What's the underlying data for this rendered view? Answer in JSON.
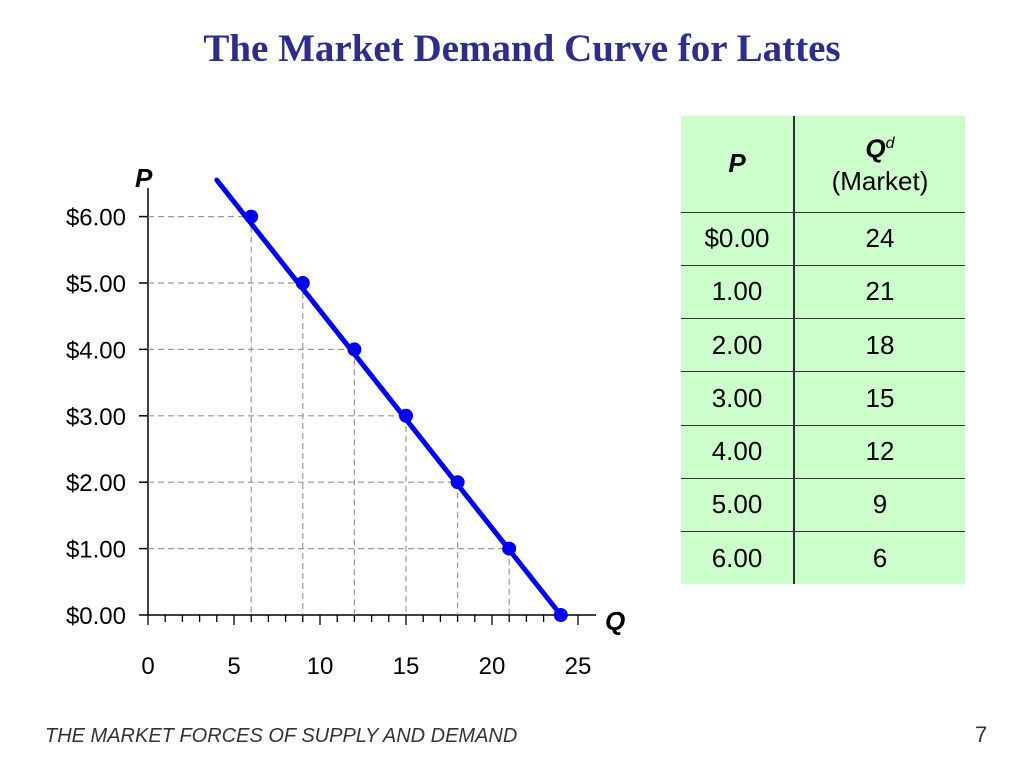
{
  "title": "The Market Demand Curve for Lattes",
  "footer": "THE MARKET FORCES OF SUPPLY AND DEMAND",
  "page_number": "7",
  "colors": {
    "title": "#2d2d8a",
    "curve": "#0000ee",
    "table_bg": "#ccffcc"
  },
  "chart_data": {
    "type": "line",
    "x": [
      6,
      9,
      12,
      15,
      18,
      21,
      24
    ],
    "y": [
      6,
      5,
      4,
      3,
      2,
      1,
      0
    ],
    "xlabel": "Q",
    "ylabel": "P",
    "xlim": [
      0,
      25
    ],
    "ylim": [
      0,
      6
    ],
    "x_ticks": [
      0,
      5,
      10,
      15,
      20,
      25
    ],
    "x_tick_labels": [
      "0",
      "5",
      "10",
      "15",
      "20",
      "25"
    ],
    "y_ticks": [
      0,
      1,
      2,
      3,
      4,
      5,
      6
    ],
    "y_tick_labels": [
      "$0.00",
      "$1.00",
      "$2.00",
      "$3.00",
      "$4.00",
      "$5.00",
      "$6.00"
    ],
    "line_extends_to": [
      4,
      6.55
    ],
    "dashed_guides": true,
    "markers": true
  },
  "table": {
    "header_p": "P",
    "header_q": "Q",
    "header_q_sup": "d",
    "header_q_sub": "(Market)",
    "rows": [
      {
        "p": "$0.00",
        "q": "24"
      },
      {
        "p": "1.00",
        "q": "21"
      },
      {
        "p": "2.00",
        "q": "18"
      },
      {
        "p": "3.00",
        "q": "15"
      },
      {
        "p": "4.00",
        "q": "12"
      },
      {
        "p": "5.00",
        "q": "9"
      },
      {
        "p": "6.00",
        "q": "6"
      }
    ]
  }
}
